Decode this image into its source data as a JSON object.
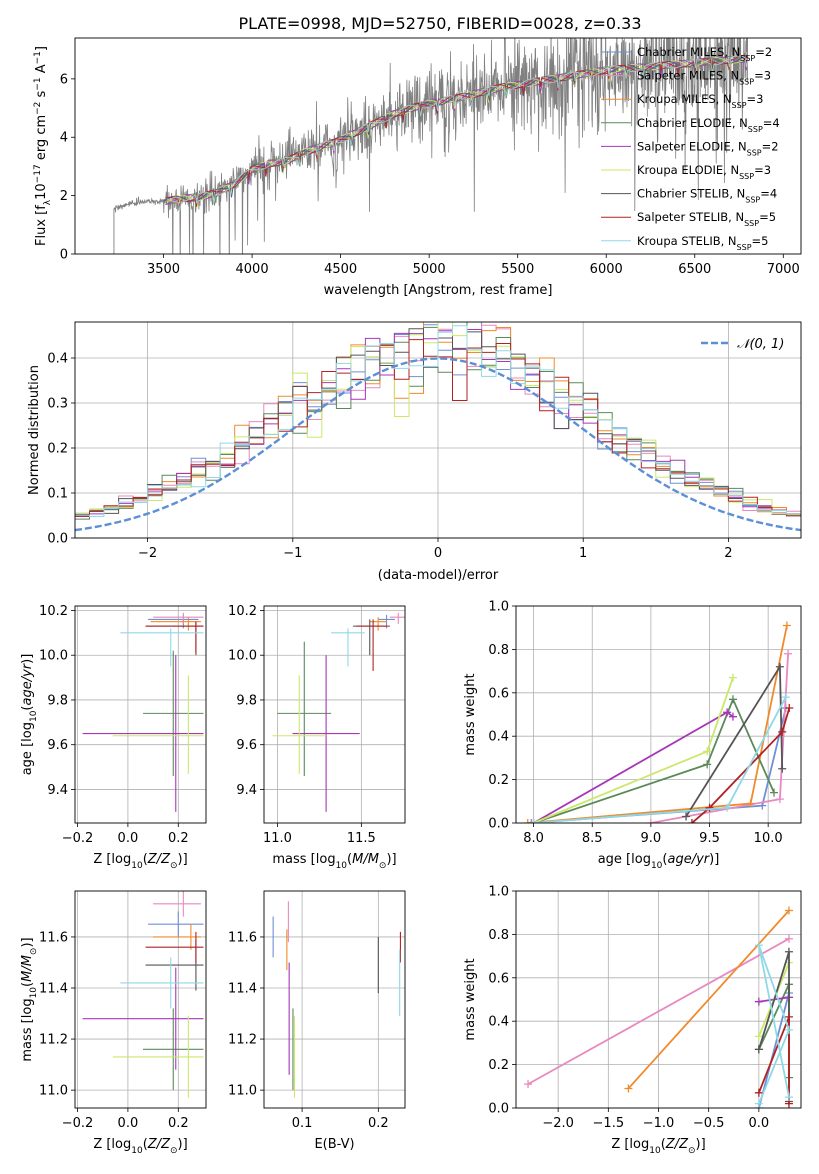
{
  "page_title": "PLATE=0998, MJD=52750, FIBERID=0028, z=0.33",
  "colors": {
    "Chabrier MILES": "#6f8fd6",
    "Salpeter MILES": "#e889c1",
    "Kroupa MILES": "#f08a2a",
    "Chabrier ELODIE": "#5a8a5a",
    "Salpeter ELODIE": "#a637b7",
    "Kroupa ELODIE": "#cbe86a",
    "Chabrier STELIB": "#555555",
    "Salpeter STELIB": "#b22222",
    "Kroupa STELIB": "#8fd8e6",
    "data": "#808080",
    "normal": "#5b8fd6"
  },
  "chart_data": [
    {
      "id": "spectrum",
      "type": "line",
      "xlabel": "wavelength [Angstrom, rest frame]",
      "ylabel": "Flux [f",
      "xlim": [
        3000,
        7100
      ],
      "ylim": [
        0,
        7.4
      ],
      "xticks": [
        3500,
        4000,
        4500,
        5000,
        5500,
        6000,
        6500,
        7000
      ],
      "yticks": [
        0,
        2,
        4,
        6
      ],
      "legend_placement": "top-right",
      "legend": [
        "Chabrier MILES, N",
        "Salpeter MILES, N",
        "Kroupa MILES, N",
        "Chabrier ELODIE, N",
        "Salpeter ELODIE, N",
        "Kroupa ELODIE, N",
        "Chabrier STELIB, N",
        "Salpeter STELIB, N",
        "Kroupa STELIB, N"
      ],
      "legend_nssp": [
        2,
        3,
        3,
        4,
        2,
        3,
        4,
        5,
        5
      ],
      "continuum": [
        [
          3220,
          1.55
        ],
        [
          3300,
          1.7
        ],
        [
          3400,
          1.8
        ],
        [
          3500,
          1.8
        ],
        [
          3600,
          1.9
        ],
        [
          3700,
          1.95
        ],
        [
          3800,
          2.1
        ],
        [
          3900,
          2.4
        ],
        [
          4000,
          2.9
        ],
        [
          4100,
          3.1
        ],
        [
          4200,
          3.2
        ],
        [
          4300,
          3.5
        ],
        [
          4400,
          3.7
        ],
        [
          4500,
          3.9
        ],
        [
          4600,
          4.2
        ],
        [
          4700,
          4.5
        ],
        [
          4800,
          4.8
        ],
        [
          4900,
          5.0
        ],
        [
          5000,
          5.15
        ],
        [
          5200,
          5.4
        ],
        [
          5400,
          5.7
        ],
        [
          5600,
          5.9
        ],
        [
          5800,
          6.1
        ],
        [
          6000,
          6.3
        ],
        [
          6200,
          6.4
        ],
        [
          6400,
          6.5
        ],
        [
          6600,
          6.6
        ],
        [
          6800,
          6.7
        ]
      ],
      "noise_start": 3500,
      "noise_end": 6800
    },
    {
      "id": "residuals",
      "type": "histogram",
      "xlabel": "(data-model)/error",
      "ylabel": "Normed distribution",
      "xlim": [
        -2.5,
        2.5
      ],
      "ylim": [
        0,
        0.48
      ],
      "xticks": [
        -2,
        -1,
        0,
        1,
        2
      ],
      "yticks": [
        0.0,
        0.1,
        0.2,
        0.3,
        0.4
      ],
      "legend_placement": "top-right",
      "legend": "𝒩(0, 1)",
      "bin_width": 0.1
    },
    {
      "id": "age_vs_Z",
      "type": "errorbar",
      "xlabel": "Z [log",
      "ylabel": "age  [log",
      "xlim": [
        -0.21,
        0.31
      ],
      "ylim": [
        9.25,
        10.22
      ],
      "xticks": [
        -0.2,
        0.0,
        0.2
      ],
      "yticks": [
        9.4,
        9.6,
        9.8,
        10.0,
        10.2
      ],
      "points": [
        {
          "model": "Chabrier MILES",
          "x": 0.22,
          "xerr": [
            0.14,
            0.06
          ],
          "y": 10.16,
          "yerr": [
            0.04,
            0.02
          ]
        },
        {
          "model": "Salpeter MILES",
          "x": 0.22,
          "xerr": [
            0.12,
            0.08
          ],
          "y": 10.17,
          "yerr": [
            0.03,
            0.02
          ]
        },
        {
          "model": "Kroupa MILES",
          "x": 0.24,
          "xerr": [
            0.15,
            0.05
          ],
          "y": 10.15,
          "yerr": [
            0.04,
            0.02
          ]
        },
        {
          "model": "Chabrier ELODIE",
          "x": 0.18,
          "xerr": [
            0.12,
            0.12
          ],
          "y": 9.74,
          "yerr": [
            0.28,
            0.28
          ]
        },
        {
          "model": "Salpeter ELODIE",
          "x": 0.19,
          "xerr": [
            0.37,
            0.11
          ],
          "y": 9.65,
          "yerr": [
            0.35,
            0.35
          ]
        },
        {
          "model": "Kroupa ELODIE",
          "x": 0.24,
          "xerr": [
            0.3,
            0.06
          ],
          "y": 9.64,
          "yerr": [
            0.17,
            0.27
          ]
        },
        {
          "model": "Chabrier STELIB",
          "x": 0.27,
          "xerr": [
            0.2,
            0.03
          ],
          "y": 10.13,
          "yerr": [
            0.13,
            0.02
          ]
        },
        {
          "model": "Salpeter STELIB",
          "x": 0.27,
          "xerr": [
            0.2,
            0.03
          ],
          "y": 10.13,
          "yerr": [
            0.12,
            0.02
          ]
        },
        {
          "model": "Kroupa STELIB",
          "x": 0.17,
          "xerr": [
            0.2,
            0.13
          ],
          "y": 10.1,
          "yerr": [
            0.15,
            0.02
          ]
        }
      ]
    },
    {
      "id": "age_vs_mass",
      "type": "errorbar",
      "xlabel": "mass [log",
      "ylabel": "",
      "xlim": [
        10.92,
        11.76
      ],
      "ylim": [
        9.25,
        10.22
      ],
      "xticks": [
        11.0,
        11.5
      ],
      "yticks": [
        9.4,
        9.6,
        9.8,
        10.0,
        10.2
      ],
      "points": [
        {
          "model": "Chabrier MILES",
          "x": 11.65,
          "xerr": [
            0.05,
            0.05
          ],
          "y": 10.16,
          "yerr": [
            0.04,
            0.02
          ]
        },
        {
          "model": "Salpeter MILES",
          "x": 11.72,
          "xerr": [
            0.05,
            0.05
          ],
          "y": 10.17,
          "yerr": [
            0.03,
            0.02
          ]
        },
        {
          "model": "Kroupa MILES",
          "x": 11.6,
          "xerr": [
            0.05,
            0.05
          ],
          "y": 10.15,
          "yerr": [
            0.04,
            0.02
          ]
        },
        {
          "model": "Chabrier ELODIE",
          "x": 11.16,
          "xerr": [
            0.16,
            0.16
          ],
          "y": 9.74,
          "yerr": [
            0.28,
            0.32
          ]
        },
        {
          "model": "Salpeter ELODIE",
          "x": 11.29,
          "xerr": [
            0.2,
            0.2
          ],
          "y": 9.65,
          "yerr": [
            0.35,
            0.35
          ]
        },
        {
          "model": "Kroupa ELODIE",
          "x": 11.13,
          "xerr": [
            0.16,
            0.16
          ],
          "y": 9.64,
          "yerr": [
            0.17,
            0.27
          ]
        },
        {
          "model": "Chabrier STELIB",
          "x": 11.55,
          "xerr": [
            0.1,
            0.1
          ],
          "y": 10.13,
          "yerr": [
            0.13,
            0.03
          ]
        },
        {
          "model": "Salpeter STELIB",
          "x": 11.57,
          "xerr": [
            0.1,
            0.1
          ],
          "y": 10.13,
          "yerr": [
            0.2,
            0.03
          ]
        },
        {
          "model": "Kroupa STELIB",
          "x": 11.42,
          "xerr": [
            0.1,
            0.1
          ],
          "y": 10.1,
          "yerr": [
            0.15,
            0.02
          ]
        }
      ]
    },
    {
      "id": "weight_vs_age",
      "type": "line",
      "xlabel": "age  [log",
      "ylabel": "mass weight",
      "xlim": [
        7.85,
        10.28
      ],
      "ylim": [
        0,
        1
      ],
      "xticks": [
        8.0,
        8.5,
        9.0,
        9.5,
        10.0
      ],
      "yticks": [
        0.0,
        0.2,
        0.4,
        0.6,
        0.8,
        1.0
      ],
      "series": [
        {
          "model": "Chabrier MILES",
          "x": [
            7.98,
            9.95,
            10.15
          ],
          "y": [
            0.0,
            0.08,
            0.53
          ]
        },
        {
          "model": "Salpeter MILES",
          "x": [
            9.0,
            10.1,
            10.17
          ],
          "y": [
            0.0,
            0.11,
            0.78
          ]
        },
        {
          "model": "Kroupa MILES",
          "x": [
            7.95,
            9.85,
            10.16
          ],
          "y": [
            0.0,
            0.09,
            0.91
          ]
        },
        {
          "model": "Chabrier ELODIE",
          "x": [
            8.0,
            9.48,
            9.7,
            10.05
          ],
          "y": [
            0.0,
            0.27,
            0.57,
            0.14
          ]
        },
        {
          "model": "Salpeter ELODIE",
          "x": [
            8.0,
            9.65,
            9.7
          ],
          "y": [
            0.0,
            0.51,
            0.49
          ]
        },
        {
          "model": "Kroupa ELODIE",
          "x": [
            8.0,
            9.48,
            9.7
          ],
          "y": [
            0.0,
            0.33,
            0.67
          ]
        },
        {
          "model": "Chabrier STELIB",
          "x": [
            9.3,
            10.1,
            10.12
          ],
          "y": [
            0.03,
            0.72,
            0.25
          ]
        },
        {
          "model": "Salpeter STELIB",
          "x": [
            9.35,
            9.5,
            10.12,
            10.18
          ],
          "y": [
            0.0,
            0.07,
            0.42,
            0.53
          ]
        },
        {
          "model": "Kroupa STELIB",
          "x": [
            8.0,
            9.65,
            10.15
          ],
          "y": [
            0.0,
            0.07,
            0.58
          ]
        }
      ]
    },
    {
      "id": "mass_vs_Z",
      "type": "errorbar",
      "xlabel": "Z [log",
      "ylabel": "mass [log",
      "xlim": [
        -0.21,
        0.31
      ],
      "ylim": [
        10.93,
        11.78
      ],
      "xticks": [
        -0.2,
        0.0,
        0.2
      ],
      "yticks": [
        11.0,
        11.2,
        11.4,
        11.6
      ],
      "points": [
        {
          "model": "Chabrier MILES",
          "x": 0.2,
          "xerr": [
            0.12,
            0.1
          ],
          "y": 11.65,
          "yerr": [
            0.05,
            0.05
          ]
        },
        {
          "model": "Salpeter MILES",
          "x": 0.22,
          "xerr": [
            0.12,
            0.07
          ],
          "y": 11.73,
          "yerr": [
            0.05,
            0.05
          ]
        },
        {
          "model": "Kroupa MILES",
          "x": 0.25,
          "xerr": [
            0.15,
            0.04
          ],
          "y": 11.6,
          "yerr": [
            0.05,
            0.05
          ]
        },
        {
          "model": "Chabrier ELODIE",
          "x": 0.18,
          "xerr": [
            0.12,
            0.12
          ],
          "y": 11.16,
          "yerr": [
            0.16,
            0.16
          ]
        },
        {
          "model": "Salpeter ELODIE",
          "x": 0.19,
          "xerr": [
            0.37,
            0.11
          ],
          "y": 11.28,
          "yerr": [
            0.2,
            0.2
          ]
        },
        {
          "model": "Kroupa ELODIE",
          "x": 0.24,
          "xerr": [
            0.3,
            0.06
          ],
          "y": 11.13,
          "yerr": [
            0.16,
            0.16
          ]
        },
        {
          "model": "Chabrier STELIB",
          "x": 0.27,
          "xerr": [
            0.2,
            0.03
          ],
          "y": 11.49,
          "yerr": [
            0.1,
            0.1
          ]
        },
        {
          "model": "Salpeter STELIB",
          "x": 0.27,
          "xerr": [
            0.2,
            0.03
          ],
          "y": 11.56,
          "yerr": [
            0.06,
            0.06
          ]
        },
        {
          "model": "Kroupa STELIB",
          "x": 0.17,
          "xerr": [
            0.2,
            0.13
          ],
          "y": 11.42,
          "yerr": [
            0.1,
            0.1
          ]
        }
      ]
    },
    {
      "id": "mass_vs_ebv",
      "type": "errorbar",
      "xlabel": "E(B-V)",
      "ylabel": "",
      "xlim": [
        0.05,
        0.235
      ],
      "ylim": [
        10.93,
        11.78
      ],
      "xticks": [
        0.1,
        0.2
      ],
      "yticks": [
        11.0,
        11.2,
        11.4,
        11.6
      ],
      "points": [
        {
          "model": "Chabrier MILES",
          "x": 0.062,
          "xerr": [
            0,
            0
          ],
          "y": 11.6,
          "yerr": [
            0.08,
            0.08
          ]
        },
        {
          "model": "Salpeter MILES",
          "x": 0.082,
          "xerr": [
            0,
            0
          ],
          "y": 11.66,
          "yerr": [
            0.08,
            0.08
          ]
        },
        {
          "model": "Kroupa MILES",
          "x": 0.08,
          "xerr": [
            0,
            0
          ],
          "y": 11.55,
          "yerr": [
            0.08,
            0.08
          ]
        },
        {
          "model": "Chabrier ELODIE",
          "x": 0.088,
          "xerr": [
            0,
            0
          ],
          "y": 11.16,
          "yerr": [
            0.16,
            0.16
          ]
        },
        {
          "model": "Salpeter ELODIE",
          "x": 0.083,
          "xerr": [
            0,
            0
          ],
          "y": 11.28,
          "yerr": [
            0.22,
            0.22
          ]
        },
        {
          "model": "Kroupa ELODIE",
          "x": 0.09,
          "xerr": [
            0,
            0
          ],
          "y": 11.13,
          "yerr": [
            0.16,
            0.16
          ]
        },
        {
          "model": "Chabrier STELIB",
          "x": 0.2,
          "xerr": [
            0,
            0
          ],
          "y": 11.49,
          "yerr": [
            0.11,
            0.11
          ]
        },
        {
          "model": "Salpeter STELIB",
          "x": 0.229,
          "xerr": [
            0,
            0
          ],
          "y": 11.56,
          "yerr": [
            0.06,
            0.06
          ]
        },
        {
          "model": "Kroupa STELIB",
          "x": 0.228,
          "xerr": [
            0,
            0
          ],
          "y": 11.42,
          "yerr": [
            0.13,
            0.13
          ]
        }
      ]
    },
    {
      "id": "weight_vs_Z",
      "type": "line",
      "xlabel": "Z [log",
      "ylabel": "mass weight",
      "xlim": [
        -2.42,
        0.42
      ],
      "ylim": [
        0,
        1
      ],
      "xticks": [
        -2.0,
        -1.5,
        -1.0,
        -0.5,
        0.0
      ],
      "yticks": [
        0.0,
        0.2,
        0.4,
        0.6,
        0.8,
        1.0
      ],
      "series": [
        {
          "model": "Chabrier MILES",
          "x": [
            0.0,
            0.3
          ],
          "y": [
            0.0,
            0.53
          ]
        },
        {
          "model": "Salpeter MILES",
          "x": [
            -2.3,
            0.3
          ],
          "y": [
            0.11,
            0.78
          ]
        },
        {
          "model": "Kroupa MILES",
          "x": [
            -1.3,
            0.3
          ],
          "y": [
            0.09,
            0.91
          ]
        },
        {
          "model": "Chabrier ELODIE",
          "x": [
            0.0,
            0.3,
            0.3
          ],
          "y": [
            0.27,
            0.57,
            0.14
          ]
        },
        {
          "model": "Salpeter ELODIE",
          "x": [
            0.0,
            0.3
          ],
          "y": [
            0.49,
            0.51
          ]
        },
        {
          "model": "Kroupa ELODIE",
          "x": [
            0.0,
            0.3
          ],
          "y": [
            0.33,
            0.67
          ]
        },
        {
          "model": "Chabrier STELIB",
          "x": [
            0.0,
            0.3,
            0.3
          ],
          "y": [
            0.27,
            0.72,
            0.03
          ]
        },
        {
          "model": "Salpeter STELIB",
          "x": [
            0.0,
            0.3,
            0.3
          ],
          "y": [
            0.07,
            0.42,
            0.02
          ]
        },
        {
          "model": "Kroupa STELIB",
          "x": [
            0.0,
            0.3,
            0.0,
            0.3
          ],
          "y": [
            0.02,
            0.36,
            0.75,
            0.05
          ]
        }
      ]
    }
  ]
}
